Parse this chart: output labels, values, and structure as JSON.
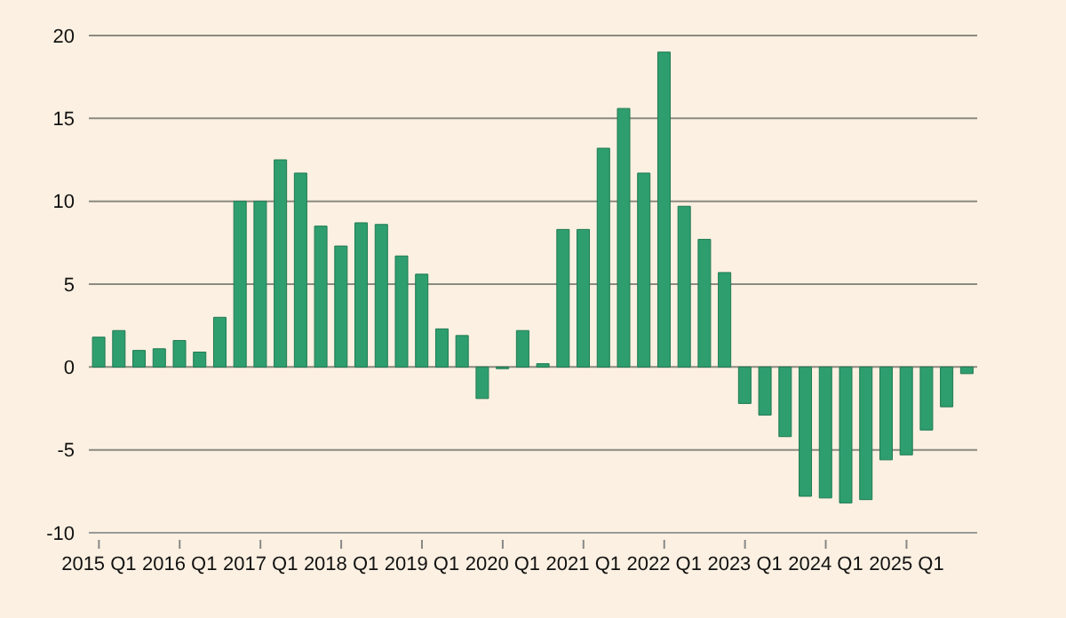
{
  "chart_data": {
    "type": "bar",
    "categories": [
      "2015 Q1",
      null,
      null,
      null,
      "2016 Q1",
      null,
      null,
      null,
      "2017 Q1",
      null,
      null,
      null,
      "2018 Q1",
      null,
      null,
      null,
      "2019 Q1",
      null,
      null,
      null,
      "2020 Q1",
      null,
      null,
      null,
      "2021 Q1",
      null,
      null,
      null,
      "2022 Q1",
      null,
      null,
      null,
      "2023 Q1",
      null,
      null,
      null,
      "2024 Q1",
      null,
      null,
      null,
      "2025 Q1",
      null,
      null,
      null
    ],
    "values": [
      1.8,
      2.2,
      1.0,
      1.1,
      1.6,
      0.9,
      3.0,
      10.0,
      10.0,
      12.5,
      11.7,
      8.5,
      7.3,
      8.7,
      8.6,
      6.7,
      5.6,
      2.3,
      1.9,
      -1.9,
      -0.1,
      2.2,
      0.2,
      8.3,
      8.3,
      13.2,
      15.6,
      11.7,
      19.0,
      9.7,
      7.7,
      5.7,
      -2.2,
      -2.9,
      -4.2,
      -7.8,
      -7.9,
      -8.2,
      -8.0,
      -5.6,
      -5.3,
      -3.8,
      -2.4,
      -0.4
    ],
    "color": "#2e9e6f",
    "ylim": [
      -10,
      20
    ],
    "yticks": [
      -10,
      -5,
      0,
      5,
      10,
      15,
      20
    ],
    "grid": "y"
  }
}
